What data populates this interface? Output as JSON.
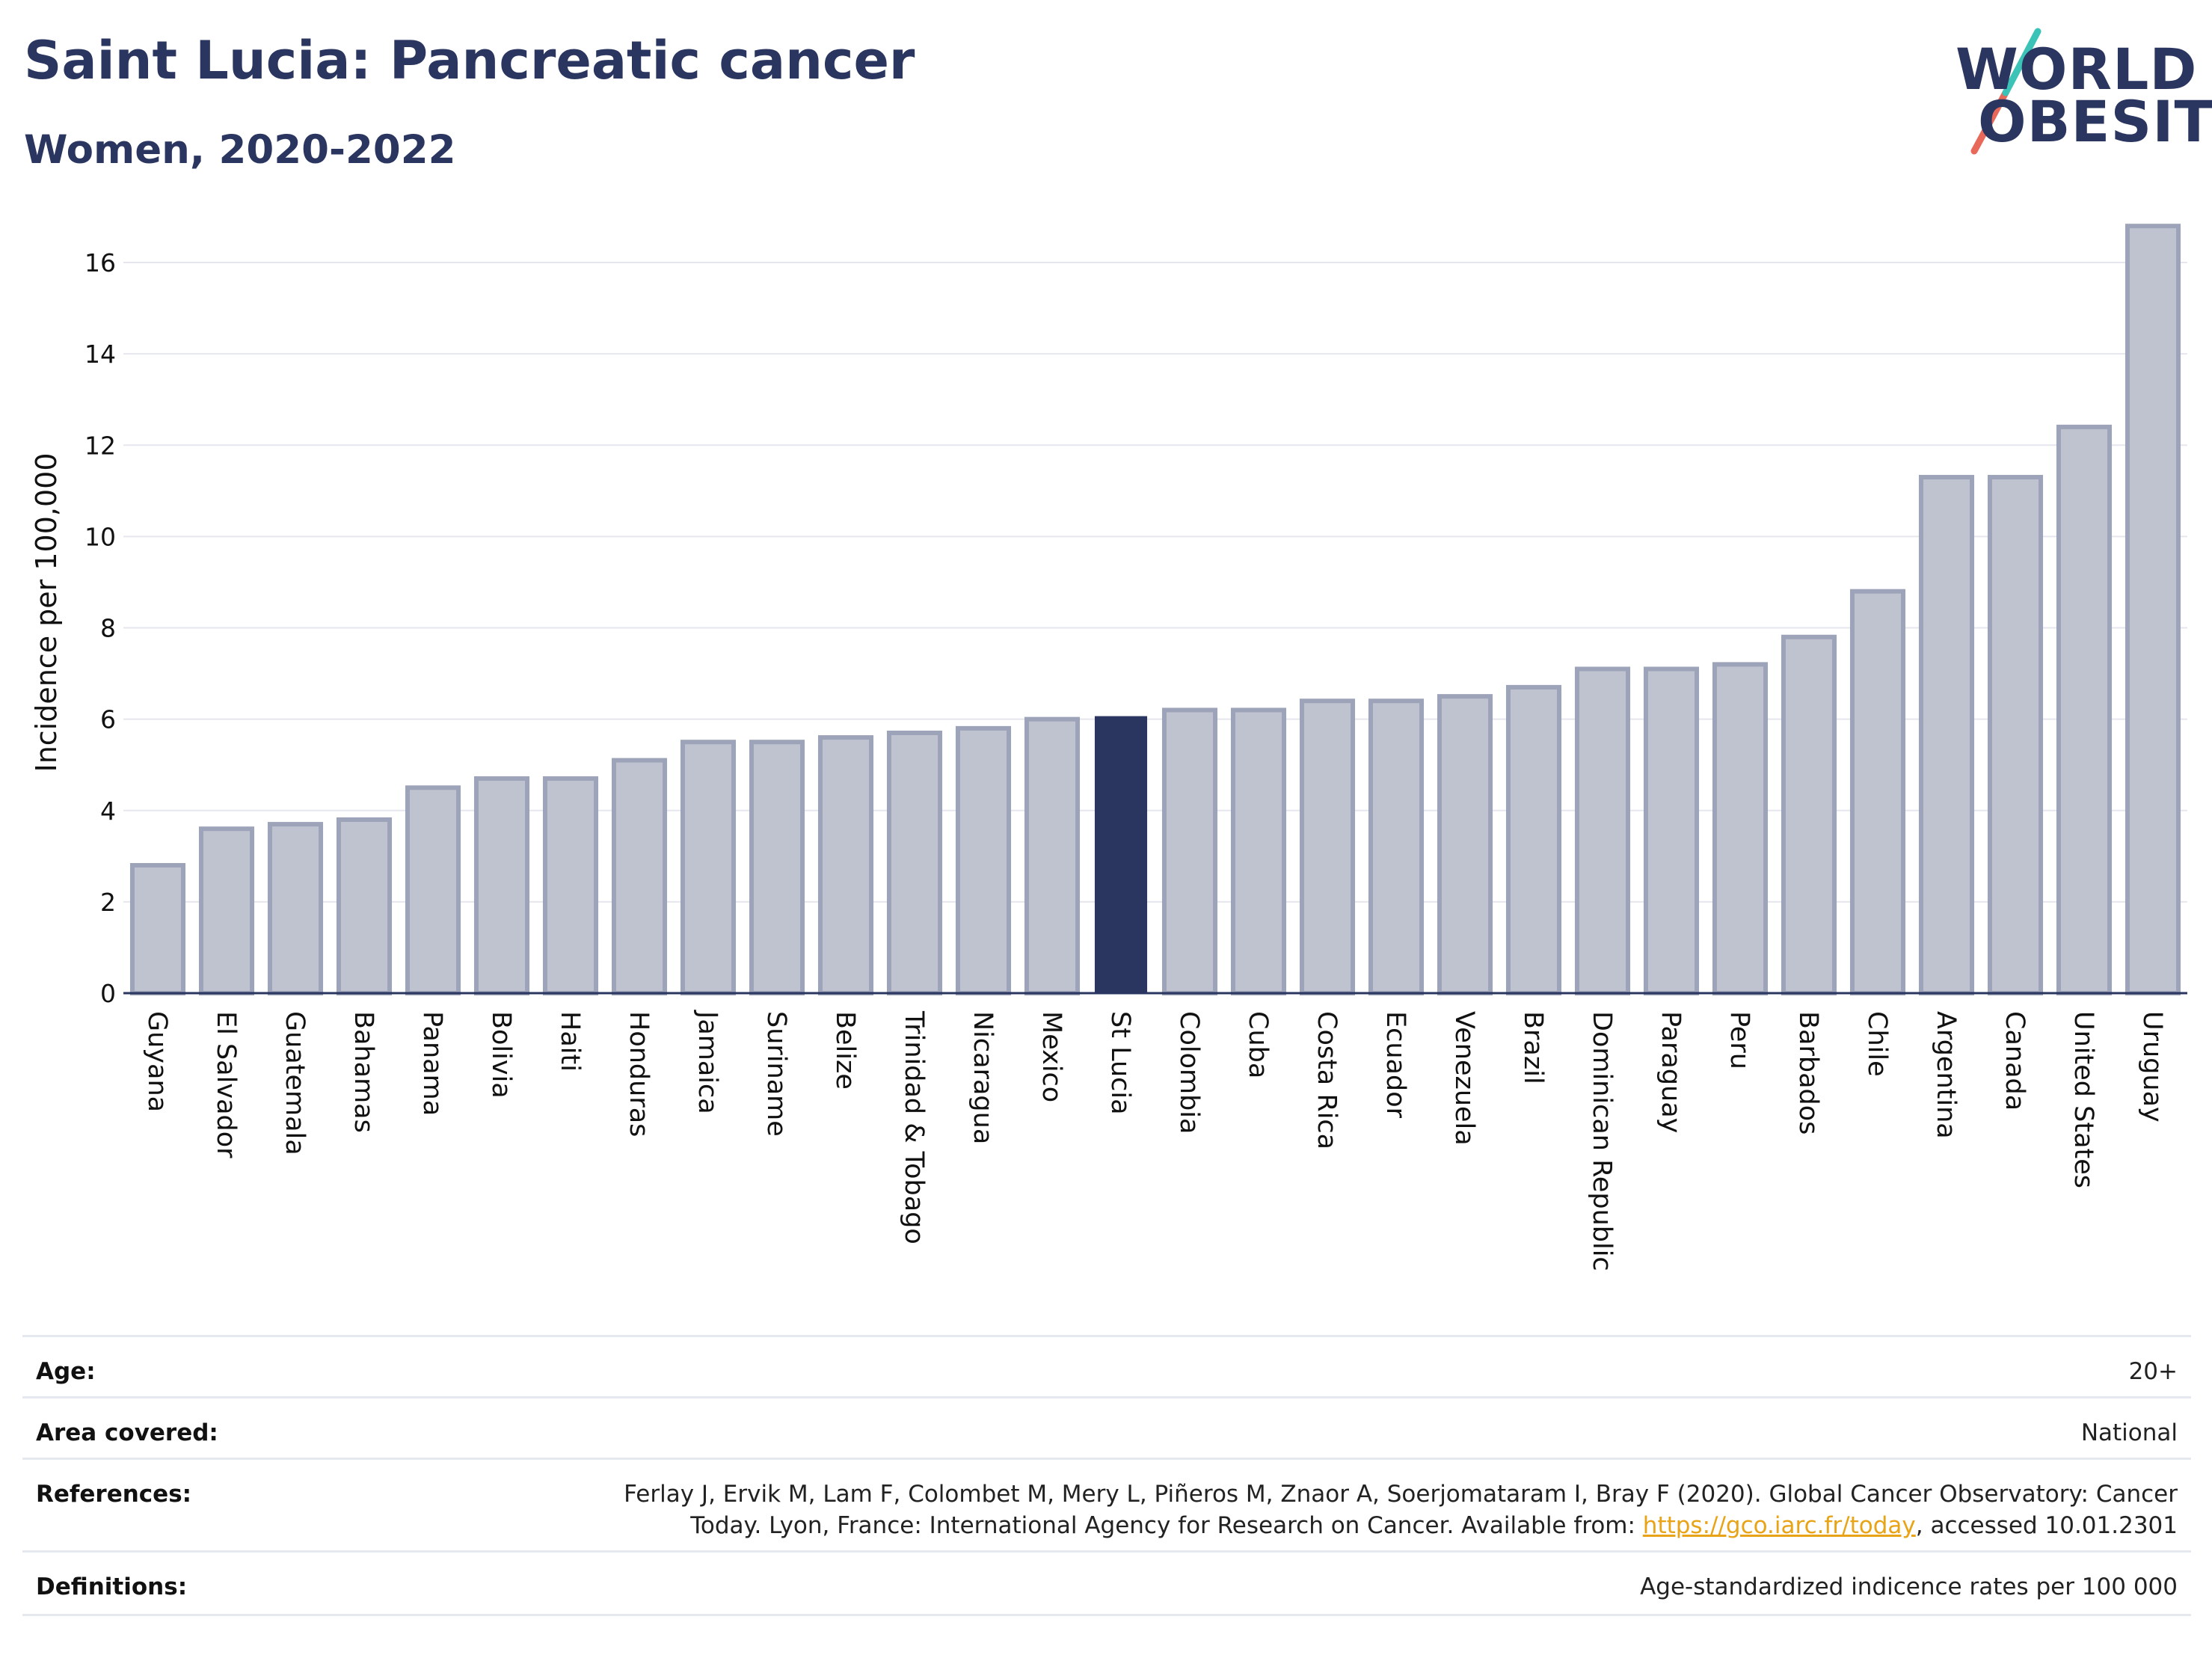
{
  "header": {
    "title": "Saint Lucia: Pancreatic cancer",
    "subtitle": "Women, 2020-2022"
  },
  "logo": {
    "line1": "WORLD",
    "line2": "OBESITY",
    "colors": {
      "text": "#2a3560",
      "slash_top": "#3cc3b8",
      "slash_bottom": "#e8685a"
    }
  },
  "chart_data": {
    "type": "bar",
    "ylabel": "Incidence per 100,000",
    "xlabel": "",
    "ylim": [
      0,
      17
    ],
    "yticks": [
      0,
      2,
      4,
      6,
      8,
      10,
      12,
      14,
      16
    ],
    "grid": true,
    "highlight": "St Lucia",
    "colors": {
      "bar": "#bfc3d0",
      "bar_border": "#9da3b8",
      "highlight": "#2a3560",
      "grid": "#e6e7ee",
      "axis": "#2a3560"
    },
    "categories": [
      "Guyana",
      "El Salvador",
      "Guatemala",
      "Bahamas",
      "Panama",
      "Bolivia",
      "Haiti",
      "Honduras",
      "Jamaica",
      "Suriname",
      "Belize",
      "Trinidad & Tobago",
      "Nicaragua",
      "Mexico",
      "St Lucia",
      "Colombia",
      "Cuba",
      "Costa Rica",
      "Ecuador",
      "Venezuela",
      "Brazil",
      "Dominican Republic",
      "Paraguay",
      "Peru",
      "Barbados",
      "Chile",
      "Argentina",
      "Canada",
      "United States",
      "Uruguay"
    ],
    "values": [
      2.8,
      3.6,
      3.7,
      3.8,
      4.5,
      4.7,
      4.7,
      5.1,
      5.5,
      5.5,
      5.6,
      5.7,
      5.8,
      6.0,
      6.05,
      6.2,
      6.2,
      6.4,
      6.4,
      6.5,
      6.7,
      7.1,
      7.1,
      7.2,
      7.8,
      8.8,
      11.3,
      11.3,
      12.4,
      16.8
    ]
  },
  "meta": {
    "age_label": "Age:",
    "age_value": "20+",
    "area_label": "Area covered:",
    "area_value": "National",
    "references_label": "References:",
    "references_line1": "Ferlay J, Ervik M, Lam F, Colombet M, Mery L, Piñeros M, Znaor A, Soerjomataram I, Bray F (2020). Global Cancer Observatory: Cancer",
    "references_line2_pre": "Today. Lyon, France: International Agency for Research on Cancer. Available from: ",
    "references_link": "https://gco.iarc.fr/today",
    "references_line2_post": ", accessed 10.01.2301",
    "definitions_label": "Definitions:",
    "definitions_value": "Age-standardized indicence rates per 100 000"
  }
}
